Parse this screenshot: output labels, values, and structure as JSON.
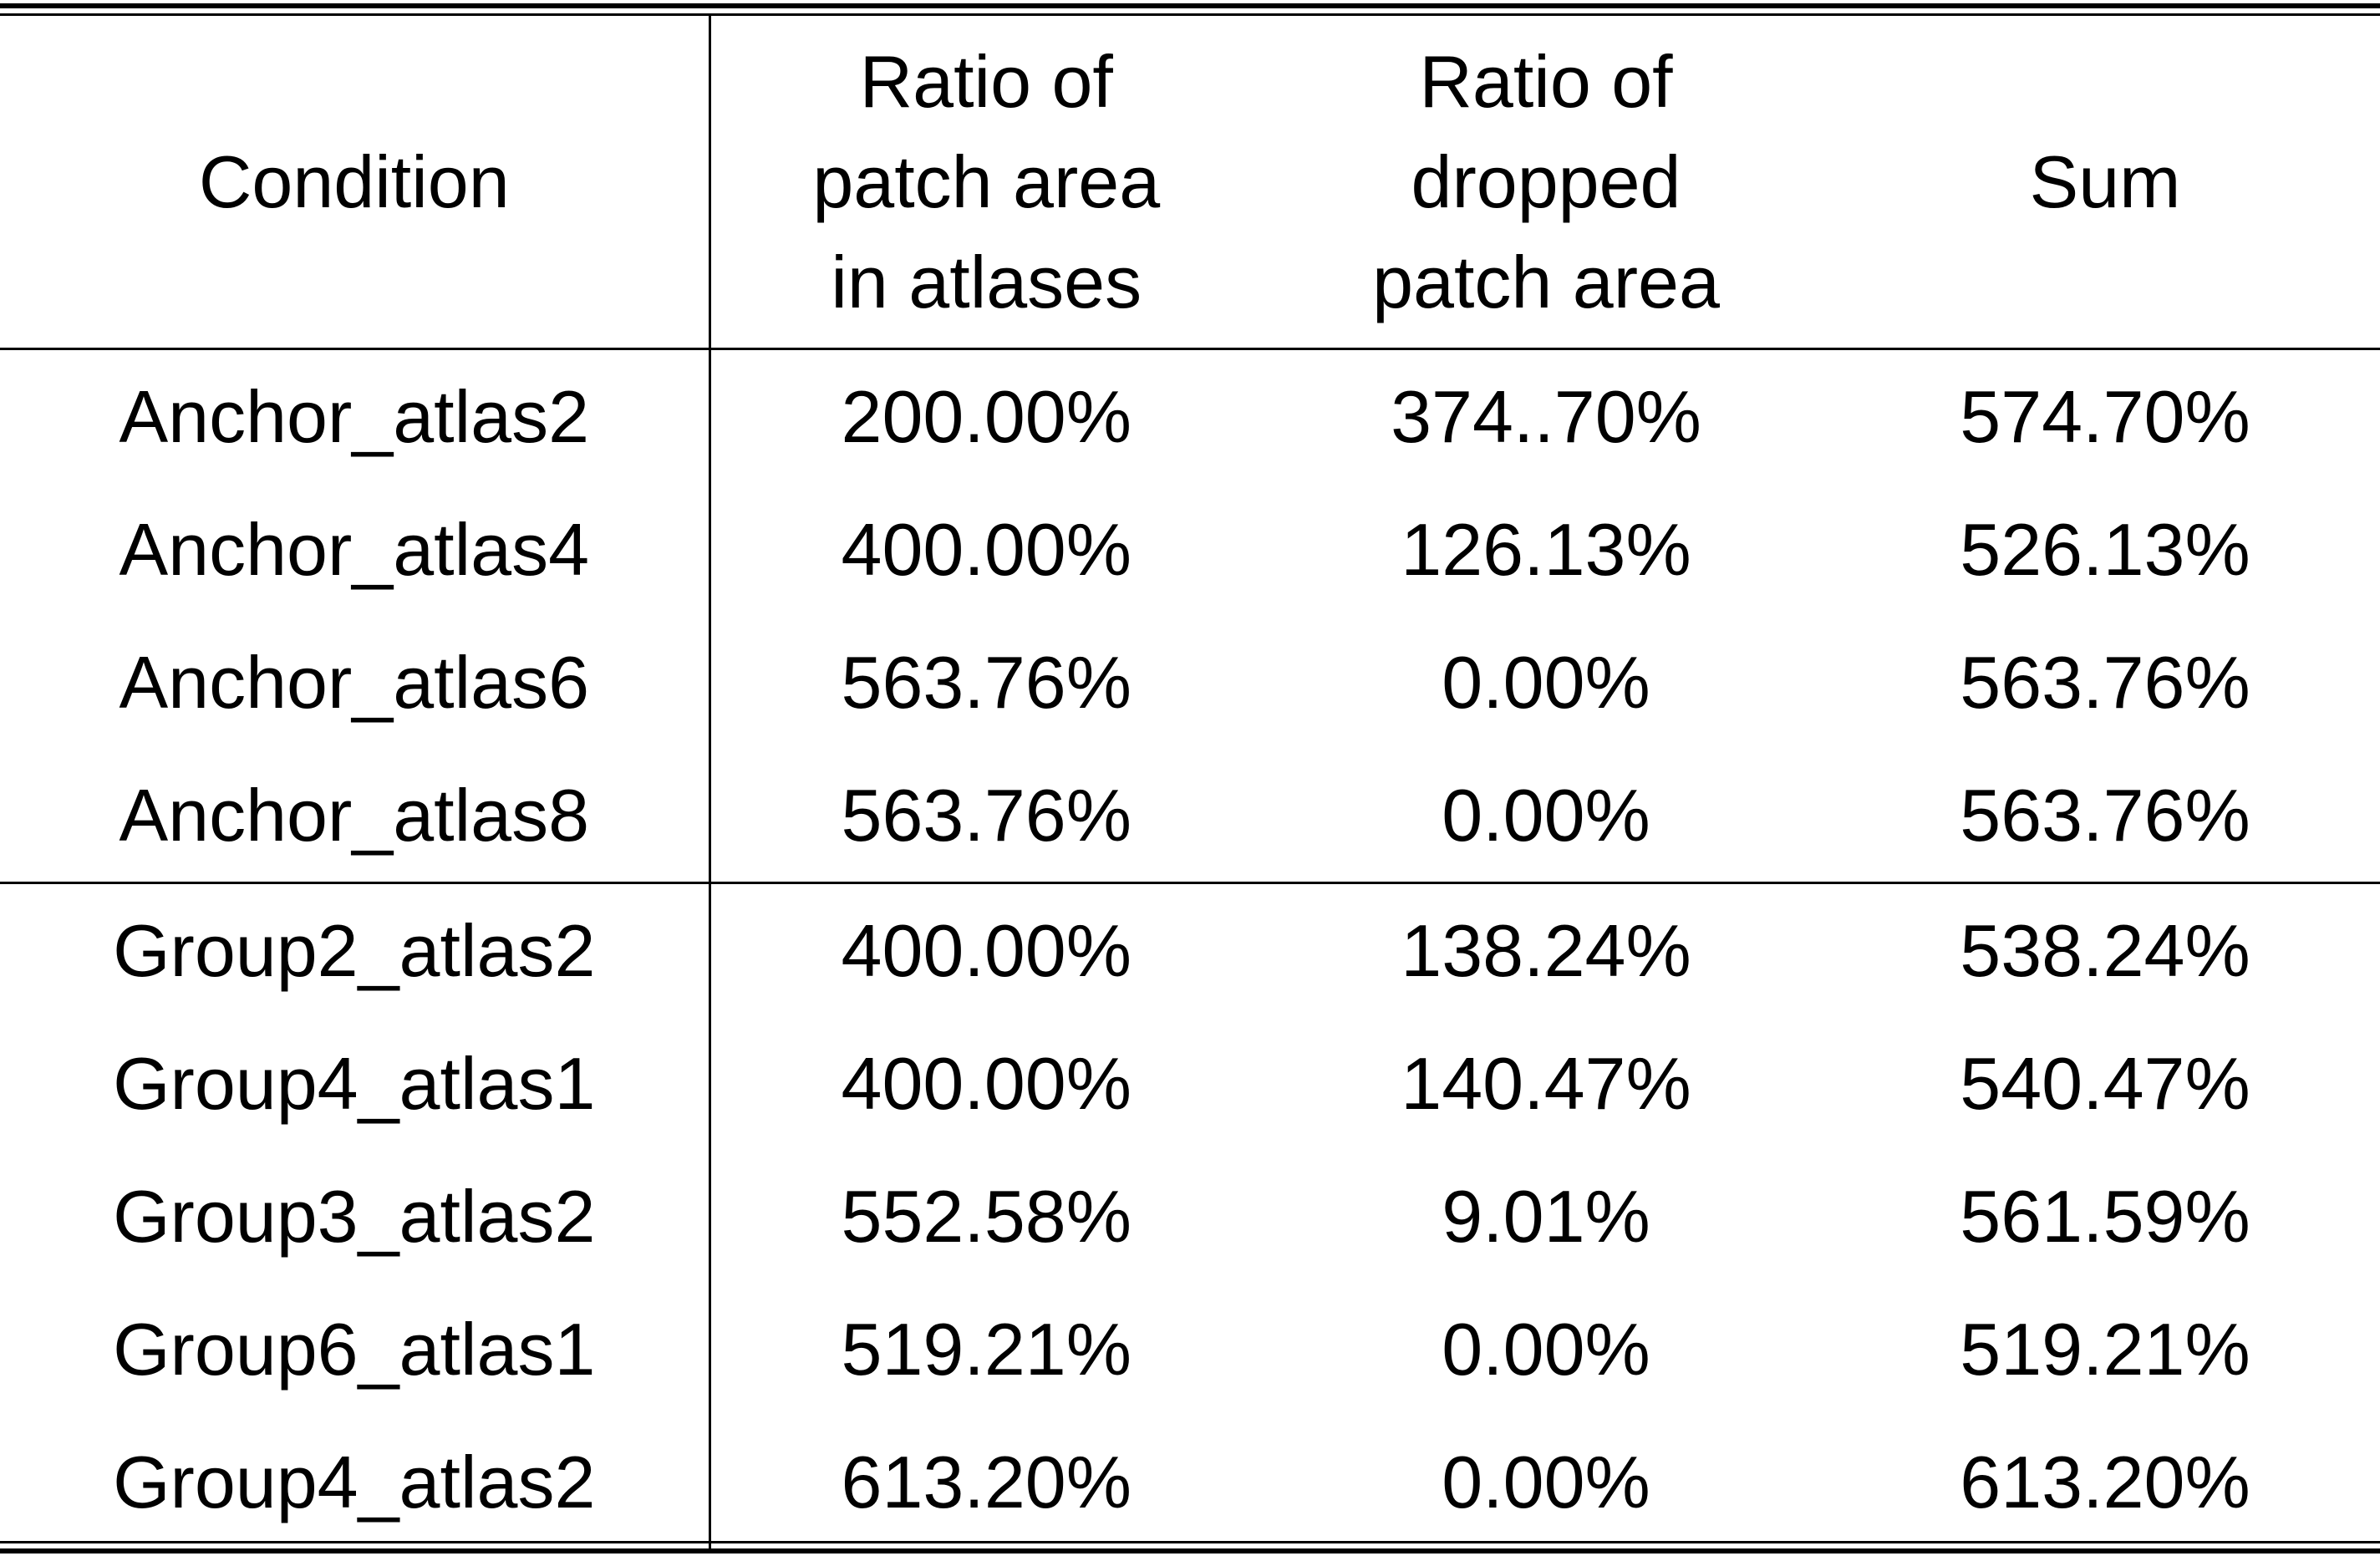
{
  "table": {
    "headers": {
      "condition": "Condition",
      "ratio_patch_area": [
        "Ratio of",
        "patch area",
        "in atlases"
      ],
      "ratio_dropped": [
        "Ratio of",
        "dropped",
        "patch area"
      ],
      "sum": "Sum"
    },
    "rows": [
      {
        "condition": "Anchor_atlas2",
        "ratio_patch": "200.00%",
        "ratio_dropped": "374..70%",
        "sum": "574.70%"
      },
      {
        "condition": "Anchor_atlas4",
        "ratio_patch": "400.00%",
        "ratio_dropped": "126.13%",
        "sum": "526.13%"
      },
      {
        "condition": "Anchor_atlas6",
        "ratio_patch": "563.76%",
        "ratio_dropped": "0.00%",
        "sum": "563.76%"
      },
      {
        "condition": "Anchor_atlas8",
        "ratio_patch": "563.76%",
        "ratio_dropped": "0.00%",
        "sum": "563.76%"
      },
      {
        "condition": "Group2_atlas2",
        "ratio_patch": "400.00%",
        "ratio_dropped": "138.24%",
        "sum": "538.24%"
      },
      {
        "condition": "Group4_atlas1",
        "ratio_patch": "400.00%",
        "ratio_dropped": "140.47%",
        "sum": "540.47%"
      },
      {
        "condition": "Group3_atlas2",
        "ratio_patch": "552.58%",
        "ratio_dropped": "9.01%",
        "sum": "561.59%"
      },
      {
        "condition": "Group6_atlas1",
        "ratio_patch": "519.21%",
        "ratio_dropped": "0.00%",
        "sum": "519.21%"
      },
      {
        "condition": "Group4_atlas2",
        "ratio_patch": "613.20%",
        "ratio_dropped": "0.00%",
        "sum": "613.20%"
      }
    ]
  }
}
